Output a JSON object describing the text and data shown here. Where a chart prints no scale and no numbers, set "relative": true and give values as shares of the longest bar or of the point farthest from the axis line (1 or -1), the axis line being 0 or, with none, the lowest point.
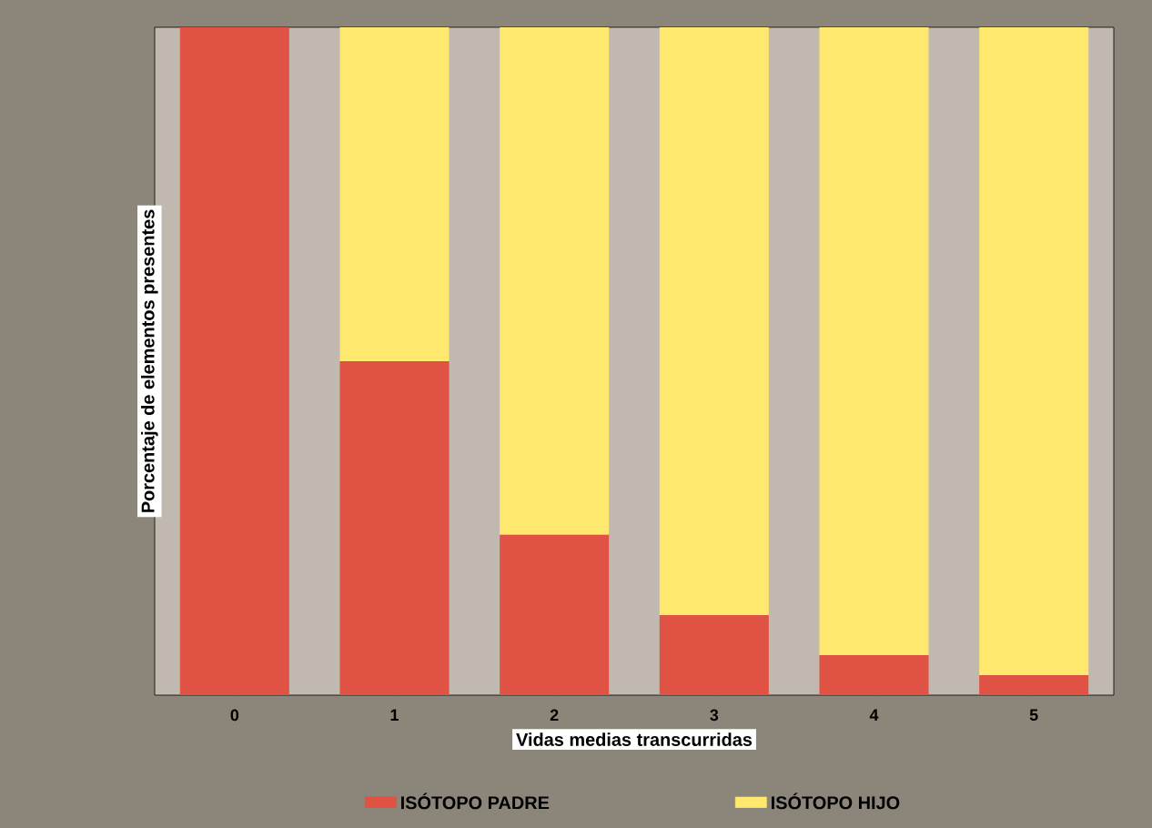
{
  "chart_data": {
    "type": "bar",
    "stacked": true,
    "relative": true,
    "xlabel": "Vidas medias transcurridas",
    "ylabel": "Porcentaje de elementos presentes",
    "categories": [
      "0",
      "1",
      "2",
      "3",
      "4",
      "5"
    ],
    "series": [
      {
        "name": "ISÓTOPO PADRE",
        "color": "#e05243",
        "values": [
          1,
          0.5,
          0.24,
          0.12,
          0.06,
          0.03
        ]
      },
      {
        "name": "ISÓTOPO HIJO",
        "color": "#ffe86e",
        "values": [
          0,
          0.5,
          0.76,
          0.88,
          0.94,
          0.97
        ]
      }
    ],
    "legend": "bottom"
  }
}
